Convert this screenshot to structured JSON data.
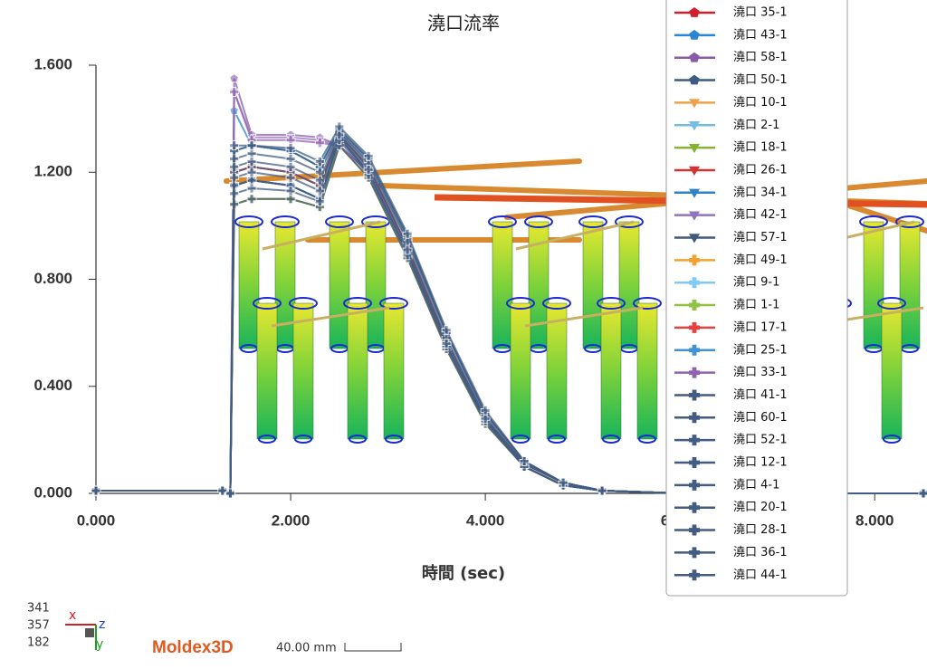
{
  "chart_data": {
    "type": "line",
    "title": "澆口流率",
    "x_label": "時間 (sec)",
    "x": [
      0,
      1.3,
      1.38,
      1.42,
      1.6,
      2.0,
      2.3,
      2.5,
      2.8,
      3.2,
      3.6,
      4.0,
      4.4,
      4.8,
      5.2,
      6.0,
      8.5
    ],
    "xlim": [
      0,
      8.5
    ],
    "xticks": [
      {
        "value": 0,
        "label": "0.000"
      },
      {
        "value": 2,
        "label": "2.000"
      },
      {
        "value": 4,
        "label": "4.000"
      },
      {
        "value": 6,
        "label": "6.000"
      },
      {
        "value": 8,
        "label": "8.000"
      }
    ],
    "ylim": [
      0,
      1.6
    ],
    "yticks": [
      {
        "value": 0,
        "label": "0.000"
      },
      {
        "value": 0.4,
        "label": "0.400"
      },
      {
        "value": 0.8,
        "label": "0.800"
      },
      {
        "value": 1.2,
        "label": "1.200"
      },
      {
        "value": 1.6,
        "label": "1.600"
      }
    ],
    "series": [
      {
        "name": "澆口 35-1",
        "color": "#d0202c",
        "marker": "pentagon",
        "values": [
          0.01,
          0.01,
          0,
          1.2,
          1.22,
          1.2,
          1.15,
          1.34,
          1.22,
          0.92,
          0.57,
          0.28,
          0.11,
          0.04,
          0.01,
          0,
          0
        ]
      },
      {
        "name": "澆口 43-1",
        "color": "#2a86d2",
        "marker": "pentagon",
        "values": [
          0.01,
          0.01,
          0,
          1.43,
          1.3,
          1.28,
          1.22,
          1.36,
          1.25,
          0.96,
          0.6,
          0.3,
          0.12,
          0.04,
          0.01,
          0,
          0
        ]
      },
      {
        "name": "澆口 58-1",
        "color": "#8a5aa8",
        "marker": "pentagon",
        "values": [
          0.01,
          0.01,
          0,
          1.55,
          1.34,
          1.34,
          1.33,
          1.3,
          1.2,
          0.9,
          0.55,
          0.27,
          0.1,
          0.03,
          0.01,
          0,
          0
        ]
      },
      {
        "name": "澆口 50-1",
        "color": "#3c5a82",
        "marker": "pentagon",
        "values": [
          0.01,
          0.01,
          0,
          1.15,
          1.17,
          1.15,
          1.1,
          1.33,
          1.2,
          0.9,
          0.55,
          0.27,
          0.1,
          0.03,
          0.01,
          0,
          0
        ]
      },
      {
        "name": "澆口 10-1",
        "color": "#f0a24a",
        "marker": "triangle",
        "values": [
          0.01,
          0.01,
          0,
          1.08,
          1.1,
          1.1,
          1.07,
          1.3,
          1.18,
          0.88,
          0.54,
          0.26,
          0.1,
          0.03,
          0.01,
          0,
          0
        ]
      },
      {
        "name": "澆口 2-1",
        "color": "#74bce4",
        "marker": "triangle",
        "values": [
          0.01,
          0.01,
          0,
          1.28,
          1.3,
          1.28,
          1.22,
          1.36,
          1.25,
          0.96,
          0.6,
          0.3,
          0.12,
          0.04,
          0.01,
          0,
          0
        ]
      },
      {
        "name": "澆口 18-1",
        "color": "#86b236",
        "marker": "triangle",
        "values": [
          0.01,
          0.01,
          0,
          1.08,
          1.1,
          1.1,
          1.07,
          1.3,
          1.18,
          0.88,
          0.54,
          0.26,
          0.1,
          0.03,
          0.01,
          0,
          0
        ]
      },
      {
        "name": "澆口 26-1",
        "color": "#d23434",
        "marker": "triangle",
        "values": [
          0.01,
          0.01,
          0,
          1.2,
          1.22,
          1.2,
          1.15,
          1.34,
          1.22,
          0.92,
          0.57,
          0.28,
          0.11,
          0.04,
          0.01,
          0,
          0
        ]
      },
      {
        "name": "澆口 34-1",
        "color": "#3282c4",
        "marker": "triangle",
        "values": [
          0.01,
          0.01,
          0,
          1.15,
          1.17,
          1.15,
          1.1,
          1.33,
          1.2,
          0.9,
          0.55,
          0.27,
          0.1,
          0.03,
          0.01,
          0,
          0
        ]
      },
      {
        "name": "澆口 42-1",
        "color": "#9272c2",
        "marker": "triangle",
        "values": [
          0.01,
          0.01,
          0,
          1.5,
          1.33,
          1.33,
          1.32,
          1.3,
          1.2,
          0.9,
          0.55,
          0.27,
          0.1,
          0.03,
          0.01,
          0,
          0
        ]
      },
      {
        "name": "澆口 57-1",
        "color": "#425a7a",
        "marker": "triangle",
        "values": [
          0.01,
          0.01,
          0,
          1.15,
          1.17,
          1.15,
          1.1,
          1.33,
          1.2,
          0.9,
          0.55,
          0.27,
          0.1,
          0.03,
          0.01,
          0,
          0
        ]
      },
      {
        "name": "澆口 49-1",
        "color": "#f2a232",
        "marker": "plus",
        "values": [
          0.01,
          0.01,
          0,
          1.08,
          1.1,
          1.1,
          1.07,
          1.3,
          1.18,
          0.88,
          0.54,
          0.26,
          0.1,
          0.03,
          0.01,
          0,
          0
        ]
      },
      {
        "name": "澆口 9-1",
        "color": "#82caf2",
        "marker": "plus",
        "values": [
          0.01,
          0.01,
          0,
          1.28,
          1.3,
          1.28,
          1.22,
          1.36,
          1.25,
          0.96,
          0.6,
          0.3,
          0.12,
          0.04,
          0.01,
          0,
          0
        ]
      },
      {
        "name": "澆口 1-1",
        "color": "#92c242",
        "marker": "plus",
        "values": [
          0.01,
          0.01,
          0,
          1.08,
          1.1,
          1.1,
          1.07,
          1.3,
          1.18,
          0.88,
          0.54,
          0.26,
          0.1,
          0.03,
          0.01,
          0,
          0
        ]
      },
      {
        "name": "澆口 17-1",
        "color": "#e24242",
        "marker": "plus",
        "values": [
          0.01,
          0.01,
          0,
          1.2,
          1.22,
          1.2,
          1.15,
          1.34,
          1.22,
          0.92,
          0.57,
          0.28,
          0.11,
          0.04,
          0.01,
          0,
          0
        ]
      },
      {
        "name": "澆口 25-1",
        "color": "#4292d2",
        "marker": "plus",
        "values": [
          0.01,
          0.01,
          0,
          1.28,
          1.3,
          1.28,
          1.22,
          1.36,
          1.25,
          0.96,
          0.6,
          0.3,
          0.12,
          0.04,
          0.01,
          0,
          0
        ]
      },
      {
        "name": "澆口 33-1",
        "color": "#9262b2",
        "marker": "plus",
        "values": [
          0.01,
          0.01,
          0,
          1.5,
          1.32,
          1.32,
          1.31,
          1.3,
          1.2,
          0.9,
          0.55,
          0.27,
          0.1,
          0.03,
          0.01,
          0,
          0
        ]
      },
      {
        "name": "澆口 41-1",
        "color": "#425c82",
        "marker": "plus",
        "values": [
          0.01,
          0.01,
          0,
          1.28,
          1.3,
          1.28,
          1.22,
          1.36,
          1.25,
          0.96,
          0.6,
          0.3,
          0.12,
          0.04,
          0.01,
          0,
          0
        ]
      },
      {
        "name": "澆口 60-1",
        "color": "#425c82",
        "marker": "plus",
        "values": [
          0.01,
          0.01,
          0,
          1.2,
          1.22,
          1.2,
          1.15,
          1.34,
          1.22,
          0.92,
          0.57,
          0.28,
          0.11,
          0.04,
          0.01,
          0,
          0
        ]
      },
      {
        "name": "澆口 52-1",
        "color": "#425c82",
        "marker": "plus",
        "values": [
          0.01,
          0.01,
          0,
          1.15,
          1.17,
          1.15,
          1.1,
          1.33,
          1.2,
          0.9,
          0.55,
          0.27,
          0.1,
          0.03,
          0.01,
          0,
          0
        ]
      },
      {
        "name": "澆口 12-1",
        "color": "#425c82",
        "marker": "plus",
        "values": [
          0.01,
          0.01,
          0,
          1.08,
          1.1,
          1.1,
          1.07,
          1.3,
          1.18,
          0.88,
          0.54,
          0.26,
          0.1,
          0.03,
          0.01,
          0,
          0
        ]
      },
      {
        "name": "澆口 4-1",
        "color": "#425c82",
        "marker": "plus",
        "values": [
          0.01,
          0.01,
          0,
          1.25,
          1.27,
          1.25,
          1.2,
          1.35,
          1.24,
          0.95,
          0.6,
          0.3,
          0.12,
          0.04,
          0.01,
          0,
          0
        ]
      },
      {
        "name": "澆口 20-1",
        "color": "#425c82",
        "marker": "plus",
        "values": [
          0.01,
          0.01,
          0,
          1.12,
          1.14,
          1.13,
          1.09,
          1.32,
          1.19,
          0.89,
          0.55,
          0.27,
          0.1,
          0.03,
          0.01,
          0,
          0
        ]
      },
      {
        "name": "澆口 28-1",
        "color": "#425c82",
        "marker": "plus",
        "values": [
          0.01,
          0.01,
          0,
          1.22,
          1.24,
          1.22,
          1.17,
          1.35,
          1.23,
          0.94,
          0.58,
          0.29,
          0.11,
          0.04,
          0.01,
          0,
          0
        ]
      },
      {
        "name": "澆口 36-1",
        "color": "#425c82",
        "marker": "plus",
        "values": [
          0.01,
          0.01,
          0,
          1.18,
          1.2,
          1.18,
          1.13,
          1.34,
          1.21,
          0.91,
          0.56,
          0.28,
          0.1,
          0.03,
          0.01,
          0,
          0
        ]
      },
      {
        "name": "澆口 44-1",
        "color": "#425c82",
        "marker": "plus",
        "values": [
          0.01,
          0.01,
          0,
          1.3,
          1.3,
          1.29,
          1.24,
          1.37,
          1.26,
          0.97,
          0.61,
          0.31,
          0.12,
          0.04,
          0.01,
          0,
          0
        ]
      }
    ]
  },
  "viewport": {
    "coords": [
      "341",
      "357",
      "182"
    ],
    "axes": [
      "x",
      "z",
      "y"
    ],
    "logo": "Moldex3D",
    "scale": "40.00 mm"
  }
}
